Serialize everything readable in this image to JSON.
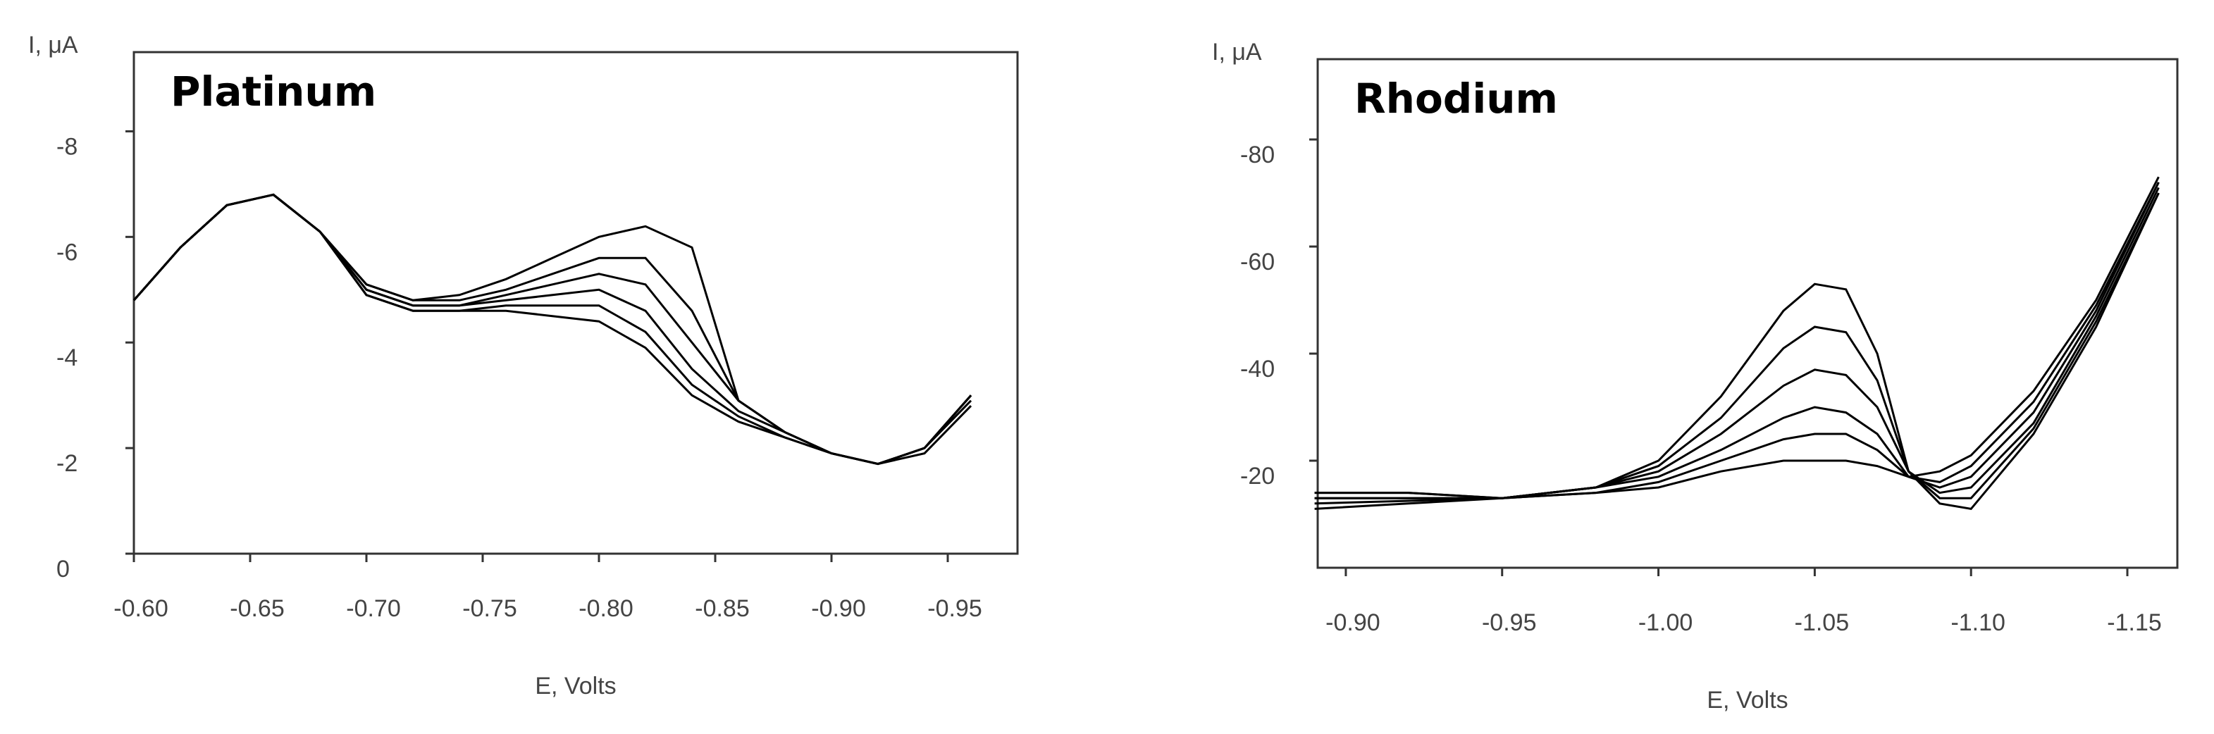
{
  "chart_data": [
    {
      "type": "line",
      "title": "Platinum",
      "y_label": "I, μA",
      "x_label": "E, Volts",
      "x": [
        -0.6,
        -0.62,
        -0.64,
        -0.66,
        -0.68,
        -0.7,
        -0.72,
        -0.74,
        -0.76,
        -0.78,
        -0.8,
        -0.82,
        -0.84,
        -0.86,
        -0.88,
        -0.9,
        -0.92,
        -0.94,
        -0.96
      ],
      "xlim": [
        -0.6,
        -0.98
      ],
      "xticks": [
        {
          "value": -0.6,
          "label": "-0.60"
        },
        {
          "value": -0.65,
          "label": "-0.65"
        },
        {
          "value": -0.7,
          "label": "-0.70"
        },
        {
          "value": -0.75,
          "label": "-0.75"
        },
        {
          "value": -0.8,
          "label": "-0.80"
        },
        {
          "value": -0.85,
          "label": "-0.85"
        },
        {
          "value": -0.9,
          "label": "-0.90"
        },
        {
          "value": -0.95,
          "label": "-0.95"
        }
      ],
      "ylim": [
        0,
        -9.5
      ],
      "yticks": [
        0,
        -2,
        -4,
        -6,
        -8
      ],
      "series": [
        {
          "color": "#000000",
          "values": [
            -4.8,
            -5.8,
            -6.6,
            -6.8,
            -6.1,
            -5.1,
            -4.8,
            -4.9,
            -5.2,
            -5.6,
            -6.0,
            -6.2,
            -5.8,
            -2.9,
            -2.3,
            -1.9,
            -1.7,
            -2.0,
            -3.0
          ]
        },
        {
          "color": "#000000",
          "values": [
            -4.8,
            -5.8,
            -6.6,
            -6.8,
            -6.1,
            -5.1,
            -4.8,
            -4.8,
            -5.0,
            -5.3,
            -5.6,
            -5.6,
            -4.6,
            -2.9,
            -2.3,
            -1.9,
            -1.7,
            -2.0,
            -3.0
          ]
        },
        {
          "color": "#000000",
          "values": [
            -4.8,
            -5.8,
            -6.6,
            -6.8,
            -6.1,
            -5.0,
            -4.7,
            -4.7,
            -4.9,
            -5.1,
            -5.3,
            -5.1,
            -4.0,
            -2.9,
            -2.3,
            -1.9,
            -1.7,
            -2.0,
            -3.0
          ]
        },
        {
          "color": "#000000",
          "values": [
            -4.8,
            -5.8,
            -6.6,
            -6.8,
            -6.1,
            -5.0,
            -4.7,
            -4.7,
            -4.8,
            -4.9,
            -5.0,
            -4.6,
            -3.5,
            -2.7,
            -2.3,
            -1.9,
            -1.7,
            -2.0,
            -3.0
          ]
        },
        {
          "color": "#000000",
          "values": [
            -4.8,
            -5.8,
            -6.6,
            -6.8,
            -6.1,
            -4.9,
            -4.6,
            -4.6,
            -4.7,
            -4.7,
            -4.7,
            -4.2,
            -3.2,
            -2.6,
            -2.2,
            -1.9,
            -1.7,
            -2.0,
            -2.9
          ]
        },
        {
          "color": "#000000",
          "values": [
            -4.8,
            -5.8,
            -6.6,
            -6.8,
            -6.1,
            -4.9,
            -4.6,
            -4.6,
            -4.6,
            -4.5,
            -4.4,
            -3.9,
            -3.0,
            -2.5,
            -2.2,
            -1.9,
            -1.7,
            -1.9,
            -2.8
          ]
        }
      ]
    },
    {
      "type": "line",
      "title": "Rhodium",
      "y_label": "I, μA",
      "x_label": "E, Volts",
      "x": [
        -0.89,
        -0.92,
        -0.95,
        -0.98,
        -1.0,
        -1.02,
        -1.04,
        -1.05,
        -1.06,
        -1.07,
        -1.08,
        -1.09,
        -1.1,
        -1.12,
        -1.14,
        -1.16
      ],
      "xlim": [
        -0.891,
        -1.166
      ],
      "xticks": [
        {
          "value": -0.9,
          "label": "-0.90"
        },
        {
          "value": -0.95,
          "label": "-0.95"
        },
        {
          "value": -1.0,
          "label": "-1.00"
        },
        {
          "value": -1.05,
          "label": "-1.05"
        },
        {
          "value": -1.1,
          "label": "-1.10"
        },
        {
          "value": -1.15,
          "label": "-1.15"
        }
      ],
      "ylim": [
        0,
        -95
      ],
      "yticks": [
        -20,
        -40,
        -60,
        -80
      ],
      "series": [
        {
          "color": "#000000",
          "values": [
            -11,
            -12,
            -13,
            -15,
            -20,
            -32,
            -48,
            -53,
            -52,
            -40,
            -18,
            -12,
            -11,
            -25,
            -45,
            -70
          ]
        },
        {
          "color": "#000000",
          "values": [
            -12,
            -12.5,
            -13,
            -15,
            -19,
            -28,
            -41,
            -45,
            -44,
            -35,
            -18,
            -13,
            -13,
            -26,
            -46,
            -70
          ]
        },
        {
          "color": "#000000",
          "values": [
            -13,
            -13,
            -13,
            -15,
            -18,
            -25,
            -34,
            -37,
            -36,
            -30,
            -18,
            -14,
            -15,
            -27,
            -47,
            -71
          ]
        },
        {
          "color": "#000000",
          "values": [
            -13,
            -13,
            -13,
            -15,
            -17,
            -22,
            -28,
            -30,
            -29,
            -25,
            -17,
            -15,
            -17,
            -29,
            -48,
            -72
          ]
        },
        {
          "color": "#000000",
          "values": [
            -14,
            -14,
            -13,
            -14,
            -16,
            -20,
            -24,
            -25,
            -25,
            -22,
            -17,
            -16,
            -19,
            -31,
            -49,
            -72
          ]
        },
        {
          "color": "#000000",
          "values": [
            -14,
            -14,
            -13,
            -14,
            -15,
            -18,
            -20,
            -20,
            -20,
            -19,
            -17,
            -18,
            -21,
            -33,
            -50,
            -73
          ]
        }
      ]
    }
  ]
}
